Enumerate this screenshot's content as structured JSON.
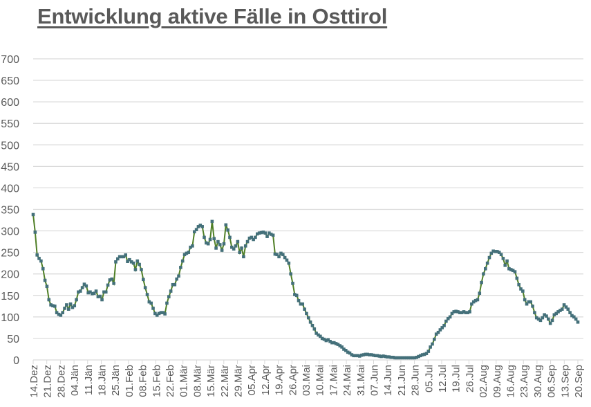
{
  "title": "Entwicklung aktive Fälle in Osttirol",
  "colors": {
    "line": "#4f7f26",
    "marker": "#44707a",
    "grid": "#d9d9d9",
    "text": "#595959"
  },
  "chart_data": {
    "type": "line",
    "title": "Entwicklung aktive Fälle in Osttirol",
    "xlabel": "",
    "ylabel": "",
    "ylim": [
      0,
      700
    ],
    "yticks": [
      0,
      50,
      100,
      150,
      200,
      250,
      300,
      350,
      400,
      450,
      500,
      550,
      600,
      650,
      700
    ],
    "grid": true,
    "legend": "none",
    "categories": [
      "14.Dez",
      "21.Dez",
      "28.Dez",
      "04.Jän",
      "11.Jän",
      "18.Jän",
      "25.Jän",
      "01.Feb",
      "08.Feb",
      "15.Feb",
      "22.Feb",
      "01.Mär",
      "08.Mär",
      "15.Mär",
      "22.Mär",
      "29.Mär",
      "05.Apr",
      "12.Apr",
      "19.Apr",
      "26.Apr",
      "03.Mai",
      "10.Mai",
      "17.Mai",
      "24.Mai",
      "31.Mai",
      "07.Jun",
      "14.Jun",
      "21.Jun",
      "28.Jun",
      "05.Jul",
      "12.Jul",
      "19.Jul",
      "26.Jul",
      "02.Aug",
      "09.Aug",
      "16.Aug",
      "23.Aug",
      "30.Aug",
      "06.Sep",
      "13.Sep",
      "20.Sep"
    ],
    "series": [
      {
        "name": "Aktive Fälle",
        "values": [
          338,
          297,
          244,
          236,
          230,
          212,
          185,
          171,
          140,
          128,
          126,
          125,
          110,
          106,
          104,
          110,
          120,
          128,
          118,
          130,
          122,
          126,
          140,
          158,
          160,
          168,
          176,
          172,
          156,
          158,
          154,
          155,
          160,
          147,
          148,
          140,
          158,
          158,
          174,
          186,
          188,
          178,
          228,
          235,
          240,
          240,
          240,
          244,
          229,
          233,
          228,
          225,
          210,
          230,
          222,
          210,
          187,
          168,
          152,
          135,
          132,
          120,
          108,
          104,
          108,
          110,
          110,
          107,
          132,
          147,
          160,
          175,
          175,
          188,
          195,
          215,
          230,
          245,
          248,
          250,
          262,
          265,
          298,
          303,
          310,
          313,
          310,
          285,
          272,
          270,
          280,
          322,
          282,
          260,
          275,
          268,
          255,
          270,
          314,
          302,
          285,
          262,
          258,
          265,
          275,
          250,
          260,
          240,
          265,
          275,
          283,
          285,
          280,
          285,
          293,
          295,
          296,
          297,
          295,
          287,
          295,
          292,
          290,
          246,
          245,
          240,
          248,
          245,
          238,
          232,
          225,
          200,
          178,
          152,
          150,
          138,
          130,
          130,
          118,
          108,
          98,
          88,
          80,
          72,
          62,
          58,
          55,
          50,
          48,
          45,
          47,
          43,
          40,
          40,
          38,
          36,
          33,
          30,
          25,
          22,
          18,
          16,
          12,
          10,
          10,
          10,
          9,
          11,
          12,
          13,
          13,
          12,
          12,
          11,
          10,
          10,
          9,
          8,
          9,
          8,
          7,
          7,
          6,
          6,
          5,
          5,
          5,
          5,
          5,
          5,
          5,
          5,
          5,
          5,
          5,
          6,
          8,
          10,
          12,
          13,
          15,
          20,
          30,
          37,
          48,
          60,
          64,
          70,
          75,
          80,
          90,
          96,
          100,
          108,
          112,
          113,
          112,
          110,
          110,
          112,
          110,
          110,
          112,
          130,
          135,
          138,
          140,
          155,
          180,
          200,
          212,
          225,
          238,
          248,
          253,
          252,
          252,
          250,
          245,
          236,
          220,
          230,
          212,
          210,
          208,
          205,
          190,
          175,
          165,
          160,
          140,
          130,
          135,
          135,
          125,
          110,
          98,
          95,
          92,
          98,
          105,
          102,
          95,
          85,
          92,
          105,
          108,
          112,
          115,
          118,
          128,
          123,
          118,
          110,
          103,
          100,
          95,
          88
        ]
      }
    ]
  }
}
